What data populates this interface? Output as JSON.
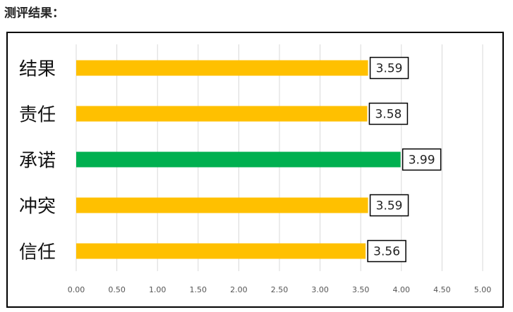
{
  "heading": "测评结果：",
  "chart_data": {
    "type": "bar",
    "orientation": "horizontal",
    "categories": [
      "结果",
      "责任",
      "承诺",
      "冲突",
      "信任"
    ],
    "values": [
      3.59,
      3.58,
      3.99,
      3.59,
      3.56
    ],
    "data_labels": [
      "3.59",
      "3.58",
      "3.99",
      "3.59",
      "3.56"
    ],
    "highlight_index": 2,
    "xlim": [
      0,
      5
    ],
    "x_ticks": [
      "0.00",
      "0.50",
      "1.00",
      "1.50",
      "2.00",
      "2.50",
      "3.00",
      "3.50",
      "4.00",
      "4.50",
      "5.00"
    ],
    "gridlines": true,
    "colors": {
      "bar": "#FFC000",
      "highlight": "#00B050",
      "grid": "#D9D9D9"
    }
  }
}
